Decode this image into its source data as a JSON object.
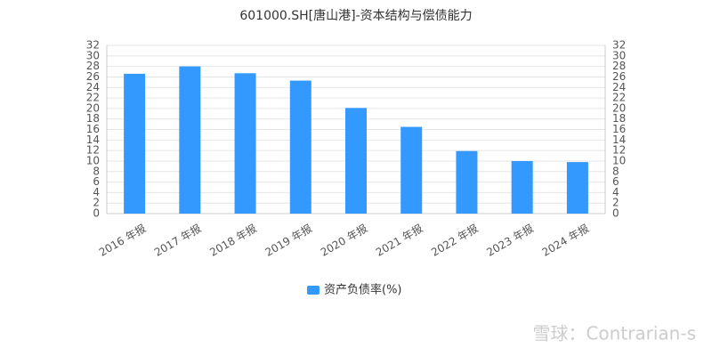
{
  "chart_data": {
    "type": "bar",
    "title": "601000.SH[唐山港]-资本结构与偿债能力",
    "categories": [
      "2016 年报",
      "2017 年报",
      "2018 年报",
      "2019 年报",
      "2020 年报",
      "2021 年报",
      "2022 年报",
      "2023 年报",
      "2024 年报"
    ],
    "series": [
      {
        "name": "资产负债率(%)",
        "color": "#3399ff",
        "values": [
          26.6,
          28.0,
          26.7,
          25.3,
          20.1,
          16.5,
          11.9,
          10.0,
          9.8
        ]
      }
    ],
    "ylim": [
      0,
      32
    ],
    "yticks": [
      0,
      2,
      4,
      6,
      8,
      10,
      12,
      14,
      16,
      18,
      20,
      22,
      24,
      26,
      28,
      30,
      32
    ],
    "y2lim": [
      0,
      32
    ],
    "y2ticks": [
      0,
      2,
      4,
      6,
      8,
      10,
      12,
      14,
      16,
      18,
      20,
      22,
      24,
      26,
      28,
      30,
      32
    ],
    "grid": true,
    "legend": "bottom",
    "watermark": "雪球：Contrarian-s"
  }
}
